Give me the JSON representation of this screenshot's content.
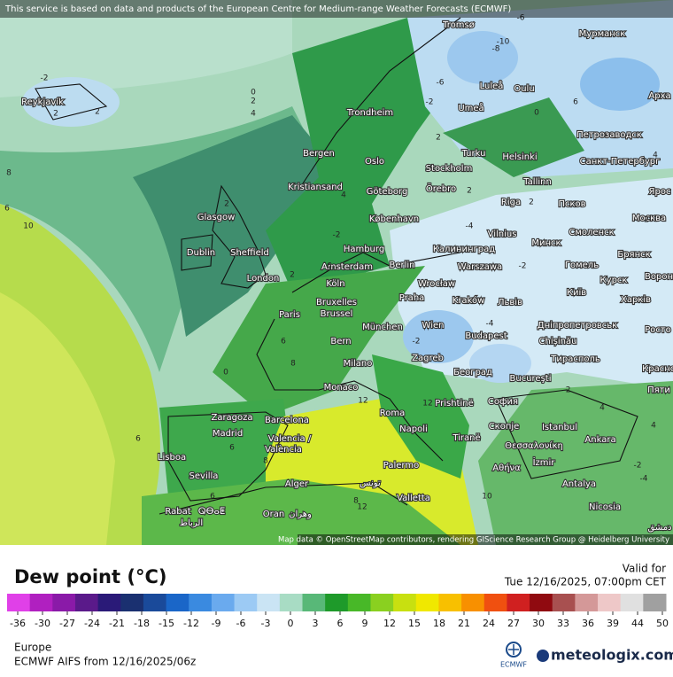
{
  "header": {
    "notice": "This service is based on data and products of the European Centre for Medium-range Weather Forecasts (ECMWF)"
  },
  "map": {
    "attribution": "Map data © OpenStreetMap contributors, rendering GIScience Research Group @ Heidelberg University",
    "cities": [
      "Reykjavík",
      "Tromsø",
      "Мурманск",
      "Luleå",
      "Oulu",
      "Umeå",
      "Trondheim",
      "Арха",
      "Петрозаводск",
      "Bergen",
      "Turku",
      "Helsinki",
      "Санкт-Петербург",
      "Oslo",
      "Stockholm",
      "Tallinn",
      "Kristiansand",
      "Göteborg",
      "Örebro",
      "Riga",
      "Псков",
      "Ярос",
      "Glasgow",
      "København",
      "Москва",
      "Vilnius",
      "Смоленск",
      "Минск",
      "Hamburg",
      "Калининград",
      "Брянск",
      "Dublin",
      "Sheffield",
      "Amsterdam",
      "Berlin",
      "Warszawa",
      "Гомель",
      "London",
      "Köln",
      "Wrocław",
      "Курск",
      "Ворон",
      "Київ",
      "Bruxelles",
      "Brussel",
      "Praha",
      "Kraków",
      "Львів",
      "Харків",
      "Paris",
      "München",
      "Wien",
      "Дніпропетровськ",
      "Chișinău",
      "Росто",
      "Budapest",
      "Bern",
      "Zagreb",
      "Тирасполь",
      "Milano",
      "Београд",
      "Красно",
      "Bucureşti",
      "Monaco",
      "Пяти",
      "Prishtinë",
      "София",
      "Roma",
      "Zaragoza",
      "Barcelona",
      "Istanbul",
      "Скопје",
      "Napoli",
      "Madrid",
      "Tiranë",
      "Θεσσαλονίκη",
      "Ankara",
      "Valencia /",
      "València",
      "Lisboa",
      "İzmir",
      "Αθήνα",
      "Palermo",
      "Sevilla",
      "Antalya",
      "Alger",
      "تونس",
      "Valletta",
      "Rabat",
      "ⵕⴱⴰⵟ",
      "الرباط",
      "Oran",
      "وهران",
      "Nicosia",
      "دمشق"
    ],
    "contour_labels": [
      "-2",
      "2",
      "2",
      "0",
      "2",
      "4",
      "-2",
      "-6",
      "-8",
      "-10",
      "-6",
      "-2",
      "-4",
      "0",
      "2",
      "-4",
      "4",
      "2",
      "6",
      "10",
      "8",
      "6",
      "2",
      "-2",
      "2",
      "-2",
      "-2",
      "4",
      "0",
      "6",
      "8",
      "6",
      "6",
      "12",
      "12",
      "8",
      "6",
      "8",
      "12",
      "10",
      "-2",
      "-4",
      "2",
      "4",
      "6",
      "4",
      "2"
    ]
  },
  "legend": {
    "title": "Dew point (°C)",
    "ticks": [
      -36,
      -30,
      -27,
      -24,
      -21,
      -18,
      -15,
      -12,
      -9,
      -6,
      -3,
      0,
      3,
      6,
      9,
      12,
      15,
      18,
      21,
      24,
      27,
      30,
      33,
      36,
      39,
      44,
      50
    ],
    "colors": [
      "#e040e8",
      "#b020c0",
      "#8a1aa8",
      "#5a1a8a",
      "#2a1a78",
      "#1a3070",
      "#1a4a9a",
      "#1a66c8",
      "#3a8ae0",
      "#6aaaee",
      "#9ccaf4",
      "#cae4f4",
      "#a8dcc4",
      "#58b878",
      "#1e9a2a",
      "#48b828",
      "#8ad020",
      "#c8e010",
      "#f0e800",
      "#f8c000",
      "#f89000",
      "#f05010",
      "#d02020",
      "#900a10",
      "#a85050",
      "#d49898",
      "#eec8c8",
      "#e0e0e0",
      "#a0a0a0"
    ]
  },
  "footer": {
    "valid_label": "Valid for",
    "valid_time": "Tue 12/16/2025, 07:00pm CET",
    "region": "Europe",
    "model_run": "ECMWF AIFS from  12/16/2025/06z",
    "ecmwf": "ECMWF",
    "brand": "meteologix.com"
  }
}
